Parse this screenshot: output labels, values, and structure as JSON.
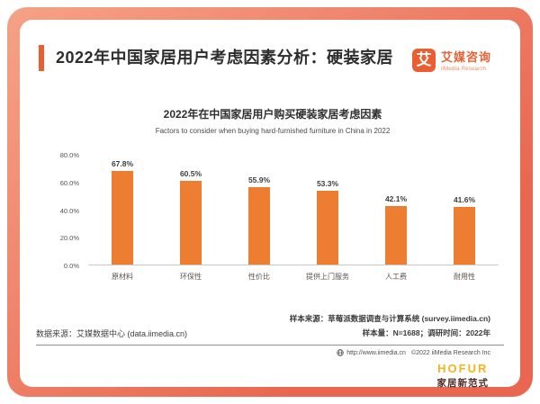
{
  "colors": {
    "accent": "#EA5F31",
    "bar": "#ED7D31",
    "bg1": "#F5A287",
    "bg2": "#E96750",
    "gold": "#F2B51C",
    "darkred": "#4D2A22"
  },
  "header": {
    "title": "2022年中国家居用户考虑因素分析：硬装家居"
  },
  "logo": {
    "mark": "艾",
    "name_cn": "艾媒咨询",
    "name_en": "iiMedia Research"
  },
  "chart_data": {
    "type": "bar",
    "title": "2022年在中国家居用户购买硬装家居考虑因素",
    "subtitle": "Factors to consider when buying hard-furnished furniture in China in 2022",
    "categories": [
      "原材料",
      "环保性",
      "性价比",
      "提供上门服务",
      "人工费",
      "耐用性"
    ],
    "values": [
      67.8,
      60.5,
      55.9,
      53.3,
      42.1,
      41.6
    ],
    "value_labels": [
      "67.8%",
      "60.5%",
      "55.9%",
      "53.3%",
      "42.1%",
      "41.6%"
    ],
    "yticks": [
      "0.0%",
      "20.0%",
      "40.0%",
      "60.0%",
      "80.0%"
    ],
    "ylim": [
      0,
      80
    ],
    "grid": false,
    "legend": "none"
  },
  "footer": {
    "sample_source": "样本来源：草莓派数据调查与计算系统 (survey.iimedia.cn)",
    "sample_size": "样本量：N=1688；调研时间：2022年",
    "data_source": "数据来源：艾媒数据中心 (data.iimedia.cn)",
    "url": "http://www.iimedia.cn",
    "copyright": "©2022  iiMedia Research  Inc"
  },
  "watermark": {
    "name": "HOFUR",
    "tagline": "家居新范式"
  }
}
